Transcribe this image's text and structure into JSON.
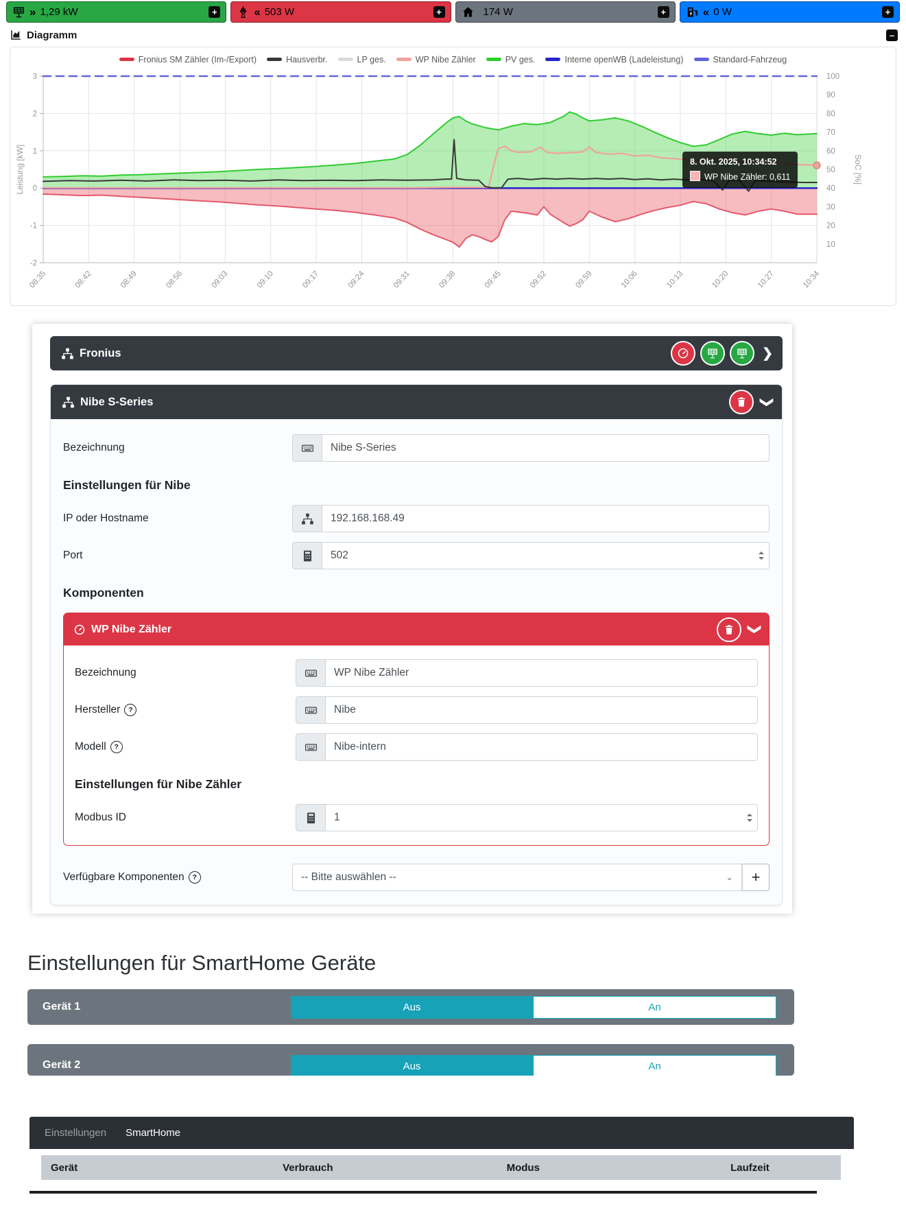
{
  "topbar": {
    "boxes": [
      {
        "icon": "solar-panel",
        "arrows": "»",
        "value": "1,29 kW",
        "color": "#28a745"
      },
      {
        "icon": "grid-tower",
        "arrows": "«",
        "value": "503 W",
        "color": "#dc3545"
      },
      {
        "icon": "house",
        "arrows": "",
        "value": "174 W",
        "color": "#6c757d"
      },
      {
        "icon": "charge-station",
        "arrows": "«",
        "value": "0 W",
        "color": "#007bff"
      }
    ],
    "expand_label": "+",
    "collapse_label": "–"
  },
  "diagram": {
    "title": "Diagramm"
  },
  "chart_data": {
    "type": "line",
    "xlabel": "",
    "ylabel_left": "Leistung [kW]",
    "ylabel_right": "SoC [%]",
    "ylim_left": [
      -2,
      3
    ],
    "ylim_right": [
      0,
      100
    ],
    "y_ticks_left": [
      3,
      2,
      1,
      0,
      -1,
      -2
    ],
    "y_ticks_right": [
      100,
      90,
      80,
      70,
      60,
      50,
      40,
      30,
      20,
      10
    ],
    "x_tick_step": 7,
    "x_max": 119,
    "x_tick_labels": [
      "08:35",
      "08:42",
      "08:49",
      "08:56",
      "09:03",
      "09:10",
      "09:17",
      "09:24",
      "09:31",
      "09:38",
      "09:45",
      "09:52",
      "09:59",
      "10:06",
      "10:13",
      "10:20",
      "10:27",
      "10:34"
    ],
    "grid": true,
    "legend_position": "top",
    "legend": [
      {
        "label": "Fronius SM Zähler (Im-/Export)",
        "color": "#dc3545"
      },
      {
        "label": "Hausverbr.",
        "color": "#383838"
      },
      {
        "label": "LP ges.",
        "color": "#d9d9d9"
      },
      {
        "label": "WP Nibe Zähler",
        "color": "#efa39d"
      },
      {
        "label": "PV ges.",
        "color": "#2fcc2f"
      },
      {
        "label": "Interne openWB (Ladeleistung)",
        "color": "#2525cc"
      },
      {
        "label": "Standard-Fahrzeug",
        "color": "#6464d9"
      }
    ],
    "series": [
      {
        "name": "PV ges.",
        "color": "#2fcc2f",
        "width": 2,
        "fill": true,
        "fillColor": "rgba(92,214,92,0.45)",
        "points": [
          [
            0,
            0.3
          ],
          [
            3,
            0.31
          ],
          [
            6,
            0.33
          ],
          [
            9,
            0.32
          ],
          [
            12,
            0.35
          ],
          [
            15,
            0.36
          ],
          [
            18,
            0.38
          ],
          [
            21,
            0.4
          ],
          [
            24,
            0.42
          ],
          [
            27,
            0.44
          ],
          [
            30,
            0.47
          ],
          [
            33,
            0.5
          ],
          [
            36,
            0.52
          ],
          [
            39,
            0.55
          ],
          [
            42,
            0.58
          ],
          [
            45,
            0.62
          ],
          [
            48,
            0.66
          ],
          [
            51,
            0.72
          ],
          [
            54,
            0.78
          ],
          [
            56,
            0.9
          ],
          [
            58,
            1.15
          ],
          [
            60,
            1.45
          ],
          [
            62,
            1.75
          ],
          [
            63,
            1.88
          ],
          [
            64,
            1.92
          ],
          [
            65,
            1.8
          ],
          [
            66,
            1.72
          ],
          [
            68,
            1.62
          ],
          [
            70,
            1.56
          ],
          [
            72,
            1.66
          ],
          [
            74,
            1.73
          ],
          [
            76,
            1.7
          ],
          [
            78,
            1.76
          ],
          [
            80,
            1.92
          ],
          [
            81,
            2.04
          ],
          [
            82,
            1.98
          ],
          [
            83,
            1.88
          ],
          [
            84,
            1.8
          ],
          [
            86,
            1.83
          ],
          [
            88,
            1.88
          ],
          [
            90,
            1.8
          ],
          [
            92,
            1.66
          ],
          [
            94,
            1.5
          ],
          [
            96,
            1.35
          ],
          [
            98,
            1.22
          ],
          [
            100,
            1.12
          ],
          [
            102,
            1.16
          ],
          [
            104,
            1.3
          ],
          [
            106,
            1.45
          ],
          [
            108,
            1.52
          ],
          [
            110,
            1.46
          ],
          [
            112,
            1.42
          ],
          [
            114,
            1.47
          ],
          [
            116,
            1.43
          ],
          [
            119,
            1.46
          ]
        ]
      },
      {
        "name": "Fronius SM Zähler (Im-/Export)",
        "color": "#e4596a",
        "width": 2,
        "fill": true,
        "fillColor": "rgba(235,95,105,0.42)",
        "points": [
          [
            0,
            -0.16
          ],
          [
            3,
            -0.18
          ],
          [
            6,
            -0.2
          ],
          [
            9,
            -0.19
          ],
          [
            12,
            -0.22
          ],
          [
            15,
            -0.25
          ],
          [
            18,
            -0.28
          ],
          [
            21,
            -0.31
          ],
          [
            24,
            -0.34
          ],
          [
            27,
            -0.37
          ],
          [
            30,
            -0.41
          ],
          [
            33,
            -0.45
          ],
          [
            36,
            -0.48
          ],
          [
            39,
            -0.52
          ],
          [
            42,
            -0.56
          ],
          [
            45,
            -0.6
          ],
          [
            48,
            -0.65
          ],
          [
            51,
            -0.72
          ],
          [
            54,
            -0.8
          ],
          [
            56,
            -0.92
          ],
          [
            58,
            -1.1
          ],
          [
            60,
            -1.25
          ],
          [
            62,
            -1.38
          ],
          [
            63,
            -1.45
          ],
          [
            64,
            -1.58
          ],
          [
            65,
            -1.35
          ],
          [
            66,
            -1.25
          ],
          [
            67,
            -1.3
          ],
          [
            68,
            -1.38
          ],
          [
            69,
            -1.44
          ],
          [
            70,
            -1.3
          ],
          [
            71,
            -0.85
          ],
          [
            72,
            -0.62
          ],
          [
            74,
            -0.66
          ],
          [
            76,
            -0.72
          ],
          [
            77,
            -0.5
          ],
          [
            78,
            -0.7
          ],
          [
            80,
            -0.92
          ],
          [
            81,
            -1.02
          ],
          [
            82,
            -0.95
          ],
          [
            83,
            -0.85
          ],
          [
            84,
            -0.62
          ],
          [
            86,
            -0.78
          ],
          [
            88,
            -0.9
          ],
          [
            90,
            -0.82
          ],
          [
            92,
            -0.7
          ],
          [
            94,
            -0.6
          ],
          [
            96,
            -0.52
          ],
          [
            98,
            -0.46
          ],
          [
            100,
            -0.36
          ],
          [
            102,
            -0.42
          ],
          [
            104,
            -0.56
          ],
          [
            106,
            -0.66
          ],
          [
            108,
            -0.72
          ],
          [
            110,
            -0.62
          ],
          [
            112,
            -0.56
          ],
          [
            114,
            -0.62
          ],
          [
            116,
            -0.7
          ],
          [
            119,
            -0.7
          ]
        ]
      },
      {
        "name": "LP ges.",
        "color": "#d9d9d9",
        "width": 2,
        "points": [
          [
            0,
            0
          ],
          [
            119,
            0
          ]
        ]
      },
      {
        "name": "Standard-Fahrzeug",
        "color": "#6464d9",
        "width": 2.5,
        "dash": "11,8",
        "points": [
          [
            0,
            3
          ],
          [
            119,
            3
          ]
        ]
      },
      {
        "name": "Interne openWB (Ladeleistung)",
        "color": "#2525cc",
        "width": 2.5,
        "points": [
          [
            0,
            0
          ],
          [
            119,
            0
          ]
        ]
      },
      {
        "name": "WP Nibe Zähler",
        "color": "#efa39d",
        "width": 2.2,
        "points": [
          [
            0,
            0.01
          ],
          [
            10,
            0.01
          ],
          [
            20,
            0.01
          ],
          [
            30,
            0.01
          ],
          [
            40,
            0.01
          ],
          [
            50,
            0.01
          ],
          [
            58,
            0.01
          ],
          [
            63,
            0.02
          ],
          [
            67,
            0.02
          ],
          [
            68.5,
            0.02
          ],
          [
            69.5,
            0.75
          ],
          [
            70,
            1.06
          ],
          [
            71,
            1.12
          ],
          [
            72,
            1.0
          ],
          [
            73,
            0.96
          ],
          [
            75,
            0.97
          ],
          [
            76.5,
            1.1
          ],
          [
            77.5,
            0.96
          ],
          [
            79,
            0.93
          ],
          [
            81,
            0.95
          ],
          [
            83,
            0.97
          ],
          [
            84,
            1.1
          ],
          [
            85,
            0.96
          ],
          [
            87,
            0.91
          ],
          [
            89,
            0.93
          ],
          [
            91,
            0.86
          ],
          [
            93,
            0.88
          ],
          [
            95,
            0.81
          ],
          [
            97,
            0.79
          ],
          [
            99,
            0.76
          ],
          [
            101,
            0.73
          ],
          [
            103,
            0.79
          ],
          [
            104.5,
            0.86
          ],
          [
            106,
            0.74
          ],
          [
            108,
            0.69
          ],
          [
            110,
            0.67
          ],
          [
            112,
            0.68
          ],
          [
            114,
            0.65
          ],
          [
            116,
            0.63
          ],
          [
            119,
            0.611
          ]
        ]
      },
      {
        "name": "Hausverbr.",
        "color": "#383838",
        "width": 2,
        "points": [
          [
            0,
            0.18
          ],
          [
            4,
            0.2
          ],
          [
            8,
            0.19
          ],
          [
            12,
            0.21
          ],
          [
            16,
            0.19
          ],
          [
            20,
            0.22
          ],
          [
            24,
            0.2
          ],
          [
            28,
            0.21
          ],
          [
            32,
            0.19
          ],
          [
            36,
            0.22
          ],
          [
            40,
            0.2
          ],
          [
            44,
            0.21
          ],
          [
            48,
            0.2
          ],
          [
            52,
            0.22
          ],
          [
            56,
            0.21
          ],
          [
            60,
            0.22
          ],
          [
            62,
            0.24
          ],
          [
            62.8,
            0.24
          ],
          [
            63.2,
            1.3
          ],
          [
            63.6,
            0.26
          ],
          [
            65,
            0.22
          ],
          [
            67,
            0.21
          ],
          [
            68,
            0.04
          ],
          [
            69,
            0.01
          ],
          [
            70.5,
            0.01
          ],
          [
            71.5,
            0.24
          ],
          [
            73,
            0.26
          ],
          [
            75,
            0.23
          ],
          [
            77,
            0.26
          ],
          [
            79,
            0.24
          ],
          [
            81,
            0.26
          ],
          [
            83,
            0.24
          ],
          [
            85,
            0.26
          ],
          [
            87,
            0.24
          ],
          [
            89,
            0.26
          ],
          [
            91,
            0.23
          ],
          [
            93,
            0.25
          ],
          [
            95,
            0.22
          ],
          [
            97,
            0.24
          ],
          [
            99,
            0.22
          ],
          [
            101,
            0.23
          ],
          [
            103,
            0.21
          ],
          [
            104.5,
            -0.05
          ],
          [
            105.5,
            0.21
          ],
          [
            107,
            0.22
          ],
          [
            108.5,
            -0.08
          ],
          [
            109.5,
            0.2
          ],
          [
            111,
            0.19
          ],
          [
            113,
            0.17
          ],
          [
            115,
            0.16
          ],
          [
            117,
            0.15
          ],
          [
            119,
            0.15
          ]
        ]
      }
    ],
    "marker": {
      "t": 119,
      "v": 0.611,
      "color": "#efa39d"
    },
    "tooltip": {
      "date": "8. Okt. 2025, 10:34:52",
      "label": "WP Nibe Zähler:",
      "value": "0,611",
      "swatch": "#f6b6b6"
    }
  },
  "device_card": {
    "fronius": {
      "title": "Fronius"
    },
    "nibe": {
      "title": "Nibe S-Series",
      "bezeichnung_label": "Bezeichnung",
      "bezeichnung_value": "Nibe S-Series",
      "section_title": "Einstellungen für Nibe",
      "ip_label": "IP oder Hostname",
      "ip_value": "192.168.168.49",
      "port_label": "Port",
      "port_value": "502",
      "komponenten_title": "Komponenten"
    },
    "component": {
      "title": "WP Nibe Zähler",
      "bezeichnung_label": "Bezeichnung",
      "bezeichnung_value": "WP Nibe Zähler",
      "hersteller_label": "Hersteller",
      "hersteller_value": "Nibe",
      "modell_label": "Modell",
      "modell_value": "Nibe-intern",
      "section_title": "Einstellungen für Nibe Zähler",
      "modbus_label": "Modbus ID",
      "modbus_value": "1"
    },
    "available_label": "Verfügbare Komponenten",
    "available_placeholder": "-- Bitte auswählen --",
    "add_button": "+"
  },
  "smarthome": {
    "heading": "Einstellungen für SmartHome Geräte",
    "devices": [
      {
        "name": "Gerät 1",
        "off": "Aus",
        "on": "An",
        "state": "off"
      },
      {
        "name": "Gerät 2",
        "off": "Aus",
        "on": "An",
        "state": "off"
      }
    ]
  },
  "bottom": {
    "tabs": [
      {
        "label": "Einstellungen",
        "active": false
      },
      {
        "label": "SmartHome",
        "active": true
      }
    ],
    "table_headers": [
      "Gerät",
      "Verbrauch",
      "Modus",
      "Laufzeit"
    ]
  }
}
